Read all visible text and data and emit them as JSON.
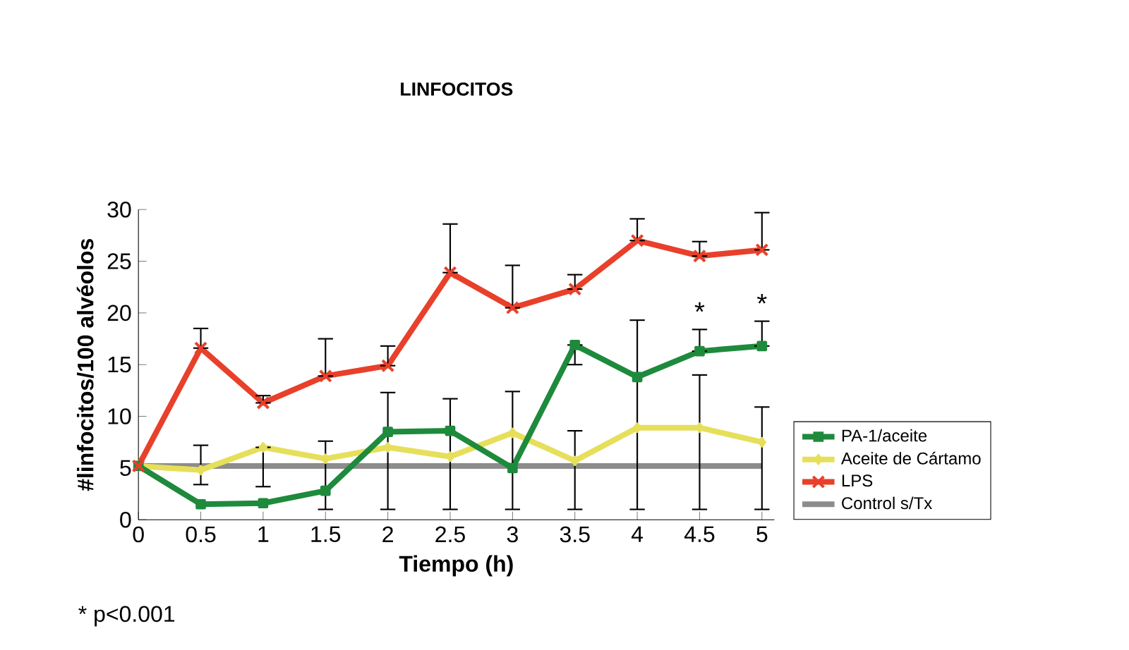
{
  "chart_data": {
    "type": "line",
    "title": "LINFOCITOS",
    "xlabel": "Tiempo (h)",
    "ylabel": "#linfocitos/100 alvéolos",
    "x": [
      0,
      0.5,
      1,
      1.5,
      2,
      2.5,
      3,
      3.5,
      4,
      4.5,
      5
    ],
    "xlim": [
      0,
      5.1
    ],
    "ylim": [
      0,
      30
    ],
    "xticks": [
      0,
      0.5,
      1,
      1.5,
      2,
      2.5,
      3,
      3.5,
      4,
      4.5,
      5
    ],
    "yticks": [
      0,
      5,
      10,
      15,
      20,
      25,
      30
    ],
    "grid": false,
    "legend": "bottom right",
    "series": [
      {
        "name": "PA-1/aceite",
        "color": "#1e8a3c",
        "marker": "square",
        "values": [
          5.2,
          1.5,
          1.6,
          2.8,
          8.5,
          8.6,
          5.0,
          16.9,
          13.8,
          16.3,
          16.8
        ],
        "errors": [
          null,
          null,
          null,
          null,
          null,
          null,
          null,
          [
            15.0,
            16.9
          ],
          null,
          [
            16.3,
            18.4
          ],
          [
            16.8,
            19.2
          ]
        ]
      },
      {
        "name": "Aceite de Cártamo",
        "color": "#e6df5a",
        "marker": "diamond",
        "values": [
          5.2,
          4.8,
          7.0,
          5.9,
          7.0,
          6.1,
          8.4,
          5.7,
          8.9,
          8.9,
          7.5
        ],
        "errors": [
          null,
          [
            3.4,
            7.2
          ],
          [
            3.2,
            7.0
          ],
          [
            1.0,
            7.6
          ],
          [
            1.0,
            12.3
          ],
          [
            1.0,
            11.7
          ],
          [
            1.0,
            12.4
          ],
          [
            1.0,
            8.6
          ],
          [
            1.0,
            19.3
          ],
          [
            1.0,
            14.0
          ],
          [
            1.0,
            10.9
          ]
        ]
      },
      {
        "name": "LPS",
        "color": "#e8402a",
        "marker": "cross",
        "values": [
          5.2,
          16.6,
          11.3,
          13.9,
          14.9,
          23.9,
          20.5,
          22.3,
          27.0,
          25.5,
          26.1
        ],
        "errors": [
          null,
          [
            16.6,
            18.5
          ],
          [
            11.3,
            12.0
          ],
          [
            13.9,
            17.5
          ],
          [
            14.9,
            16.8
          ],
          [
            23.9,
            28.6
          ],
          [
            20.5,
            24.6
          ],
          [
            22.3,
            23.7
          ],
          [
            27.0,
            29.1
          ],
          [
            25.5,
            26.9
          ],
          [
            26.1,
            29.7
          ]
        ]
      },
      {
        "name": "Control s/Tx",
        "color": "#8c8c8c",
        "marker": "none",
        "values": [
          5.2,
          5.2,
          5.2,
          5.2,
          5.2,
          5.2,
          5.2,
          5.2,
          5.2,
          5.2,
          5.2
        ]
      }
    ],
    "annotations": [
      "*",
      "*",
      "* p<0.001"
    ]
  }
}
